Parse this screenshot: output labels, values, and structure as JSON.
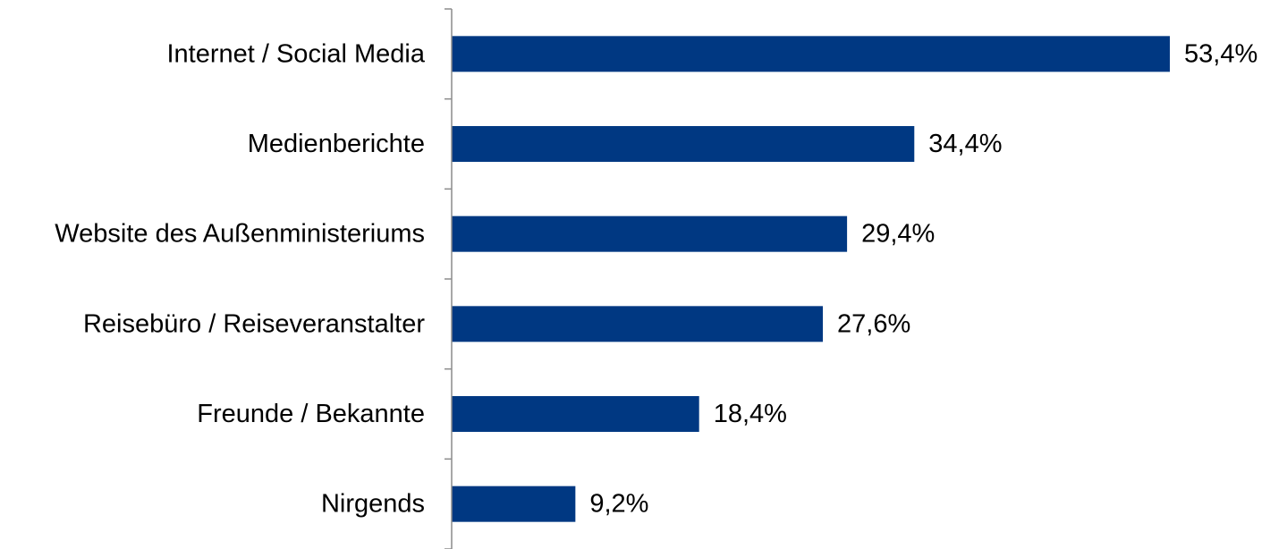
{
  "chart_data": {
    "type": "bar",
    "orientation": "horizontal",
    "categories": [
      "Internet / Social Media",
      "Medienberichte",
      "Website des Außenministeriums",
      "Reisebüro / Reiseveranstalter",
      "Freunde / Bekannte",
      "Nirgends"
    ],
    "values": [
      53.4,
      34.4,
      29.4,
      27.6,
      18.4,
      9.2
    ],
    "value_labels": [
      "53,4%",
      "34,4%",
      "29,4%",
      "27,6%",
      "18,4%",
      "9,2%"
    ],
    "bar_color": "#003882",
    "grid": false,
    "legend": "none",
    "xlim": [
      0,
      53.4
    ]
  }
}
